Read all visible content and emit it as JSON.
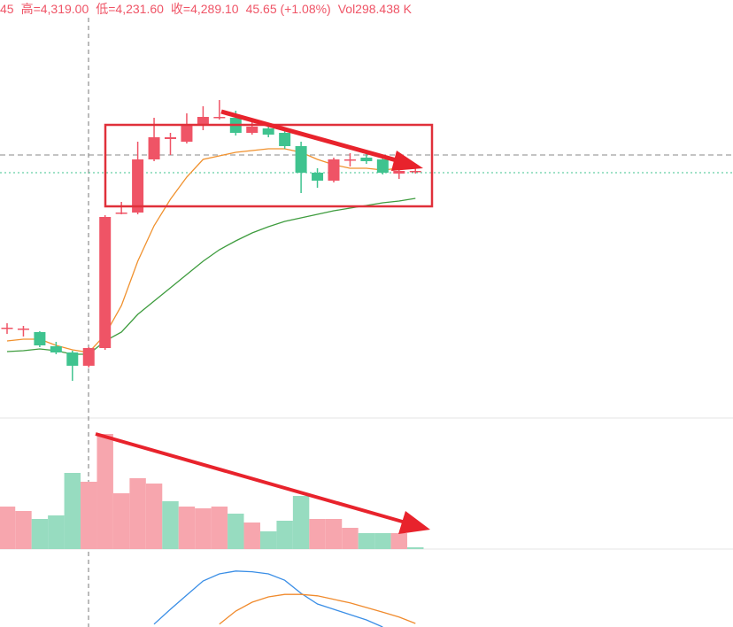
{
  "header": [
    "45",
    "高=4,319.00",
    "低=4,231.60",
    "收=4,289.10",
    "45.65 (+1.08%)",
    "Vol298.438 K"
  ],
  "chart_data": [
    {
      "type": "candlestick",
      "ylim": [
        4155,
        4390
      ],
      "up_color": "#ef5466",
      "down_color": "#3fc38f",
      "open": [
        4204.5,
        4204,
        4202.5,
        4194.5,
        4191,
        4183.5,
        4193.5,
        4269.5,
        4270,
        4300,
        4311.5,
        4310,
        4320,
        4323.5,
        4323.5,
        4315,
        4317.5,
        4315,
        4307.5,
        4292.5,
        4288,
        4299.5,
        4301,
        4300,
        4292,
        4293.5
      ],
      "high": [
        4207.5,
        4206,
        4203,
        4197,
        4192,
        4194,
        4268.5,
        4276,
        4310,
        4323.5,
        4315,
        4326,
        4330,
        4333.5,
        4327.5,
        4321,
        4320,
        4316,
        4310,
        4295,
        4301,
        4303.5,
        4303.5,
        4301,
        4296,
        4295
      ],
      "low": [
        4201.5,
        4200,
        4194,
        4190,
        4175,
        4182.5,
        4192.5,
        4269,
        4269,
        4299,
        4302.5,
        4309,
        4316.5,
        4322.5,
        4313.5,
        4314,
        4312.5,
        4306,
        4281,
        4284,
        4287,
        4296,
        4297.5,
        4291.5,
        4289,
        4292
      ],
      "close": [
        4205,
        4204.5,
        4195,
        4191,
        4183.5,
        4193.5,
        4267.5,
        4270,
        4300,
        4312.5,
        4312.5,
        4320,
        4324,
        4324,
        4315,
        4318.5,
        4314,
        4307.5,
        4292.5,
        4288,
        4300,
        4300,
        4299,
        4292.5,
        4293.5,
        4293.5
      ],
      "series": [
        {
          "color": "#f0912e",
          "values": [
            4197.5,
            4198.5,
            4198.5,
            4195,
            4192.5,
            4191,
            4201,
            4217.5,
            4242.5,
            4262.5,
            4277.5,
            4290,
            4300,
            4302,
            4304,
            4305,
            4306,
            4306,
            4304,
            4300,
            4297,
            4295,
            4295,
            4294,
            4295,
            4295
          ]
        },
        {
          "color": "#3e9c3e",
          "values": [
            4191.5,
            4192,
            4193,
            4192,
            4190,
            4190,
            4197.5,
            4202.5,
            4212.5,
            4220,
            4227.5,
            4235,
            4242.5,
            4249,
            4254,
            4258.5,
            4262,
            4265,
            4267,
            4269,
            4271,
            4272.5,
            4274,
            4275.5,
            4276.5,
            4278
          ]
        }
      ]
    },
    {
      "type": "bar",
      "ylim": [
        0,
        560
      ],
      "values": [
        192,
        172,
        136,
        152,
        344,
        304,
        520,
        252,
        320,
        296,
        216,
        192,
        184,
        192,
        160,
        120,
        80,
        128,
        240,
        136,
        136,
        96,
        72,
        72,
        72,
        8
      ],
      "colors": [
        "#f7a6ae",
        "#f7a6ae",
        "#97dcc0",
        "#97dcc0",
        "#97dcc0",
        "#f7a6ae",
        "#f7a6ae",
        "#f7a6ae",
        "#f7a6ae",
        "#f7a6ae",
        "#97dcc0",
        "#f7a6ae",
        "#f7a6ae",
        "#f7a6ae",
        "#97dcc0",
        "#f7a6ae",
        "#97dcc0",
        "#97dcc0",
        "#97dcc0",
        "#f7a6ae",
        "#f7a6ae",
        "#f7a6ae",
        "#97dcc0",
        "#97dcc0",
        "#f7a6ae",
        "#97dcc0"
      ]
    },
    {
      "type": "line",
      "ylim": [
        0,
        100
      ],
      "series": [
        {
          "color": "#3a8ee6",
          "values": [
            null,
            null,
            null,
            null,
            null,
            null,
            null,
            null,
            null,
            4,
            25,
            45,
            65,
            75,
            79,
            78,
            75,
            66,
            47.5,
            32.5,
            25,
            17.5,
            10,
            0,
            null,
            null
          ]
        },
        {
          "color": "#f08a2c",
          "values": [
            null,
            null,
            null,
            null,
            null,
            null,
            null,
            null,
            null,
            null,
            null,
            null,
            null,
            4,
            22.5,
            35,
            42.5,
            46,
            46,
            44,
            39,
            34,
            27.5,
            21,
            14,
            5
          ]
        }
      ]
    }
  ]
}
